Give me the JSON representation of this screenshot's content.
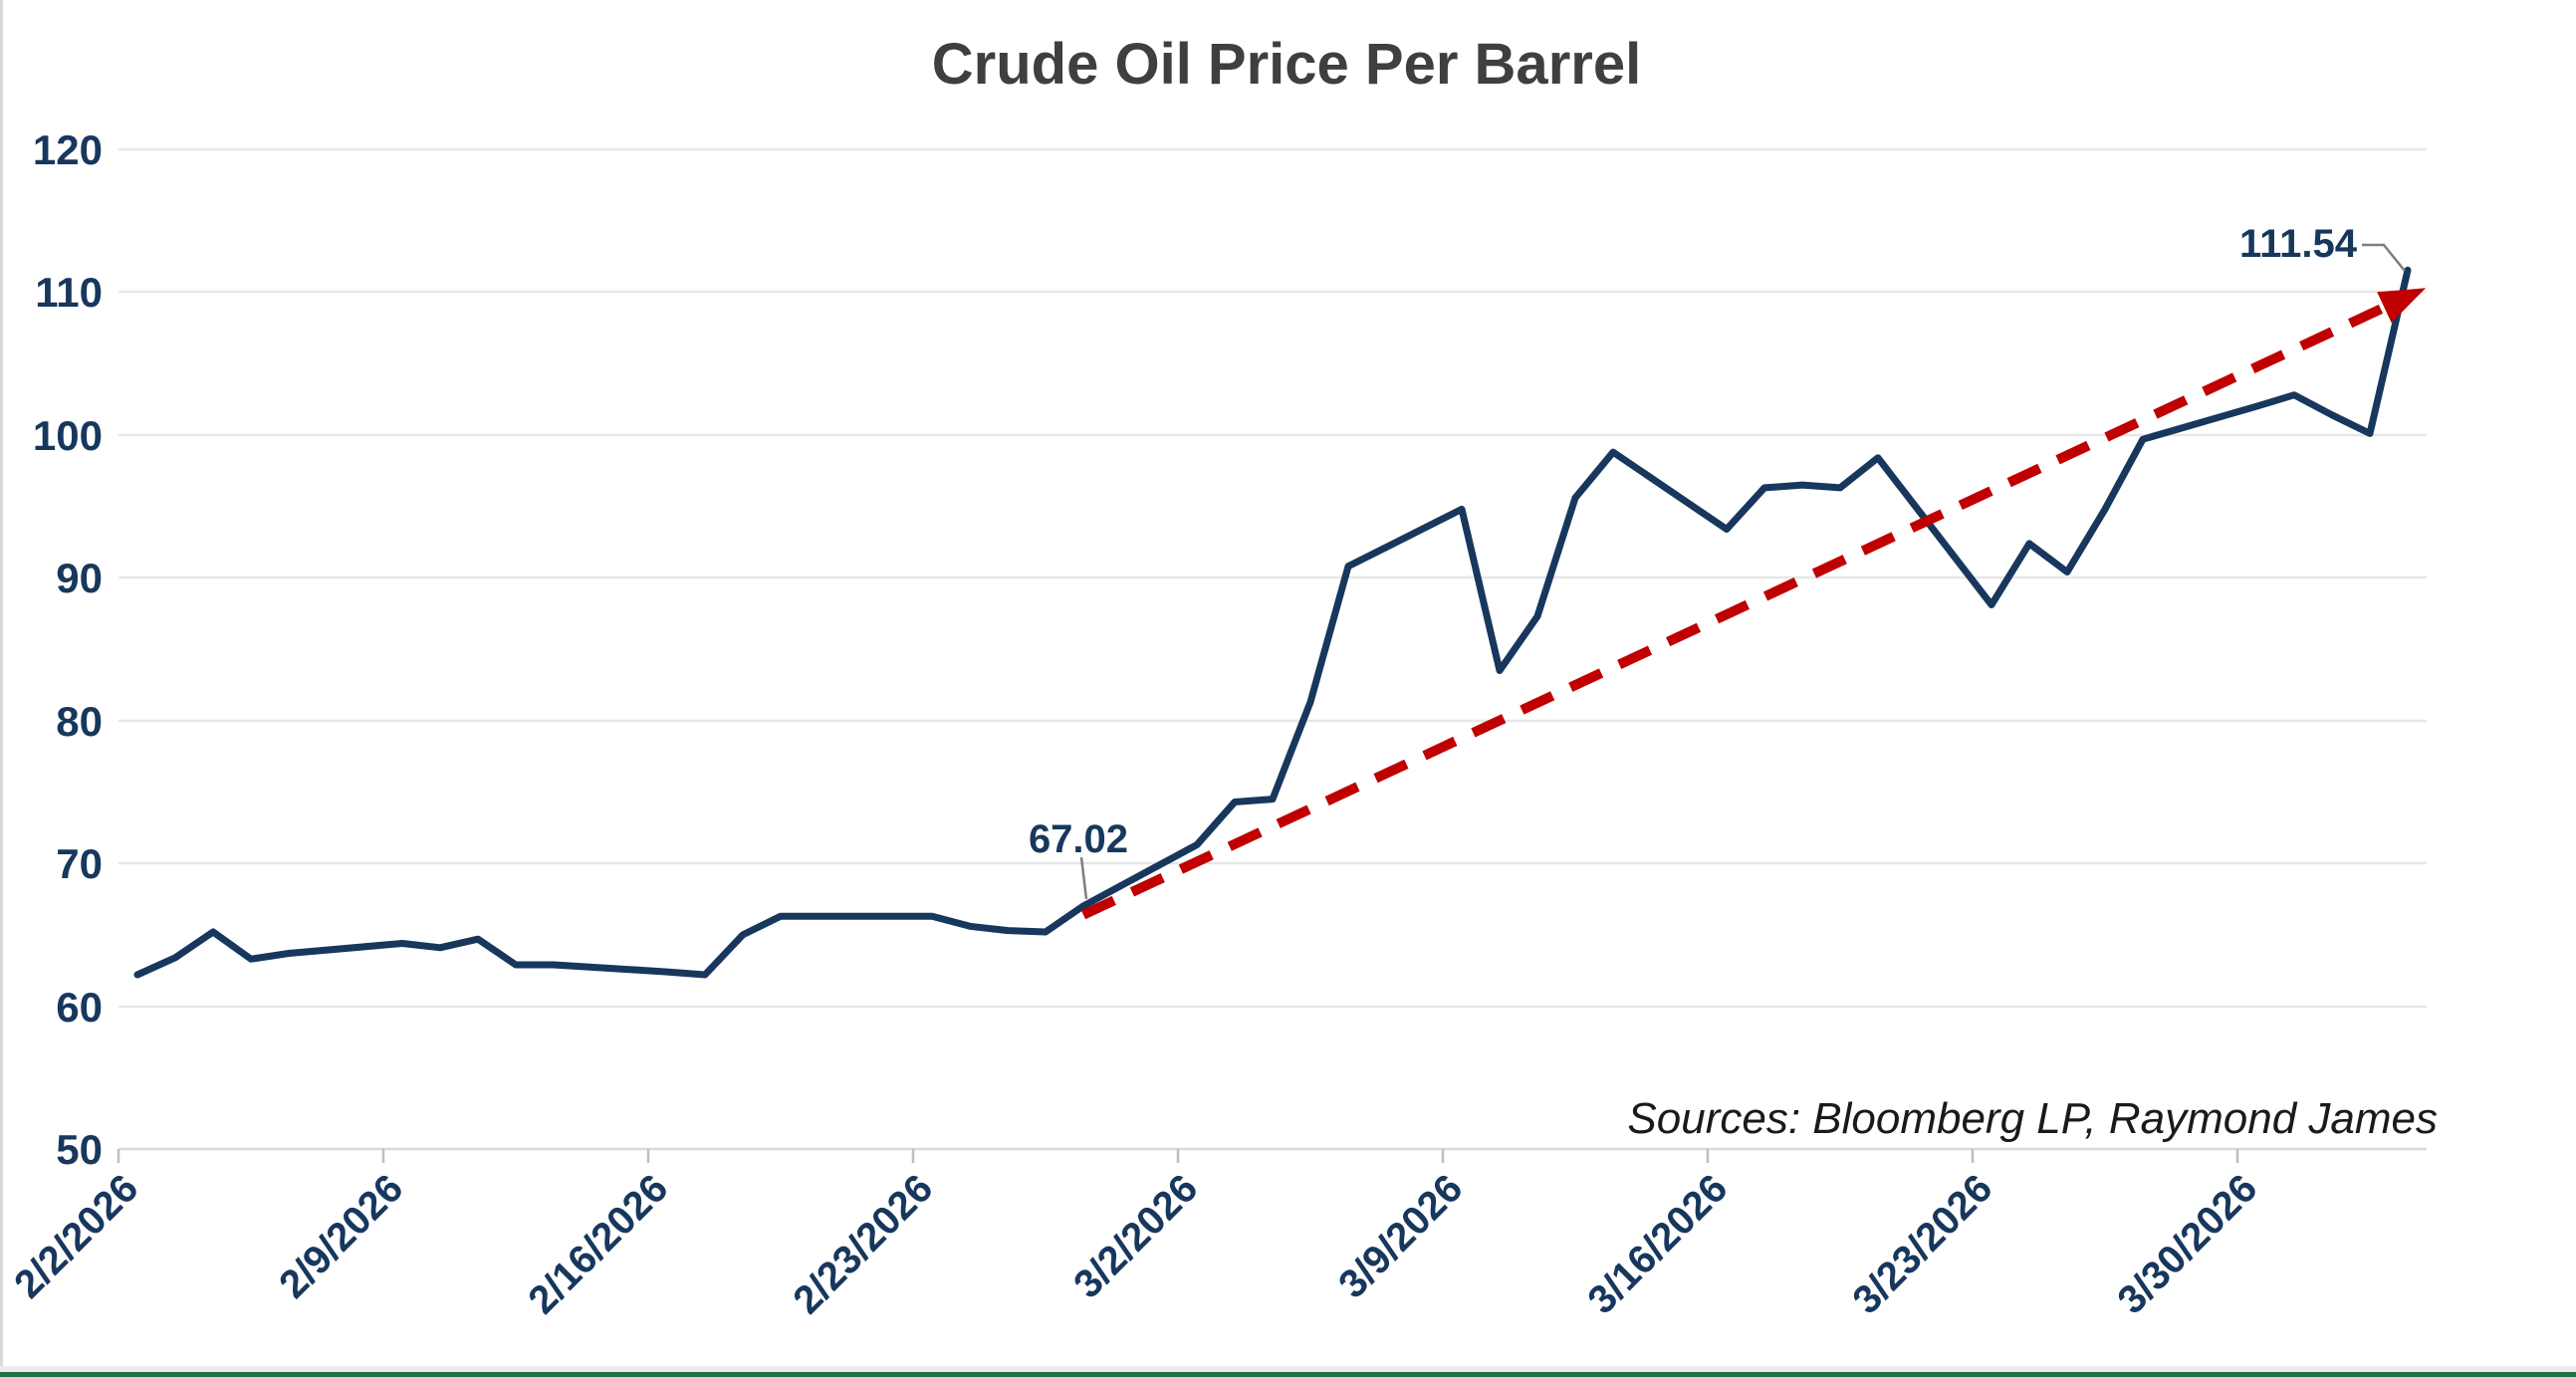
{
  "chart_title": "Crude Oil Price Per Barrel",
  "source_note": "Sources: Bloomberg LP, Raymond James",
  "colors": {
    "line": "#17375D",
    "trend": "#C00000",
    "axis_text": "#17375D",
    "title_text": "#3F3F3F",
    "gridline": "#E7E7E7",
    "axis_line": "#D9D9D9",
    "tick": "#BFBFBF",
    "callout": "#7F7F7F",
    "source_text": "#1A1A1A",
    "edge_line": "#D9D9D9",
    "bottom_strip": "#ECECEC",
    "excel_green": "#217346",
    "background": "#FFFFFF"
  },
  "chart_data": {
    "type": "line",
    "title": "Crude Oil Price Per Barrel",
    "xlabel": "",
    "ylabel": "",
    "ylim": [
      50,
      120
    ],
    "grid": "horizontal",
    "legend": "none",
    "ytick_labels": [
      "120",
      "110",
      "100",
      "90",
      "80",
      "70",
      "60",
      "50"
    ],
    "xticks": [
      "2/2/2026",
      "2/9/2026",
      "2/16/2026",
      "2/23/2026",
      "3/2/2026",
      "3/9/2026",
      "3/16/2026",
      "3/23/2026",
      "3/30/2026"
    ],
    "series": [
      {
        "name": "Crude Oil Price Per Barrel",
        "color": "#17375D",
        "style": "solid",
        "dates": [
          "2/2/2026",
          "2/3/2026",
          "2/4/2026",
          "2/5/2026",
          "2/6/2026",
          "2/9/2026",
          "2/10/2026",
          "2/11/2026",
          "2/12/2026",
          "2/13/2026",
          "2/16/2026",
          "2/17/2026",
          "2/18/2026",
          "2/19/2026",
          "2/20/2026",
          "2/23/2026",
          "2/24/2026",
          "2/25/2026",
          "2/26/2026",
          "2/27/2026",
          "3/2/2026",
          "3/3/2026",
          "3/4/2026",
          "3/5/2026",
          "3/6/2026",
          "3/9/2026",
          "3/10/2026",
          "3/11/2026",
          "3/12/2026",
          "3/13/2026",
          "3/16/2026",
          "3/17/2026",
          "3/18/2026",
          "3/19/2026",
          "3/20/2026",
          "3/23/2026",
          "3/24/2026",
          "3/25/2026",
          "3/26/2026",
          "3/27/2026",
          "3/30/2026",
          "3/31/2026",
          "4/1/2026",
          "4/2/2026",
          "4/3/2026"
        ],
        "values": [
          62.2,
          63.4,
          65.2,
          63.3,
          63.7,
          64.4,
          64.1,
          64.7,
          62.9,
          62.9,
          62.4,
          62.2,
          65.0,
          66.3,
          66.3,
          66.3,
          65.6,
          65.3,
          65.2,
          67.02,
          71.3,
          74.3,
          74.5,
          81.3,
          90.8,
          94.8,
          83.5,
          87.3,
          95.6,
          98.8,
          93.4,
          96.3,
          96.5,
          96.3,
          98.4,
          88.1,
          92.4,
          90.4,
          94.8,
          99.7,
          102.0,
          102.8,
          101.4,
          100.1,
          111.54
        ]
      },
      {
        "name": "Trend arrow",
        "color": "#C00000",
        "style": "dashed",
        "arrow": true,
        "dates": [
          "2/27/2026",
          "4/3/2026"
        ],
        "values": [
          66.4,
          109.7
        ]
      }
    ],
    "annotations": [
      {
        "label": "67.02",
        "date": "2/27/2026",
        "value": 67.02
      },
      {
        "label": "111.54",
        "date": "4/3/2026",
        "value": 111.54
      }
    ]
  }
}
